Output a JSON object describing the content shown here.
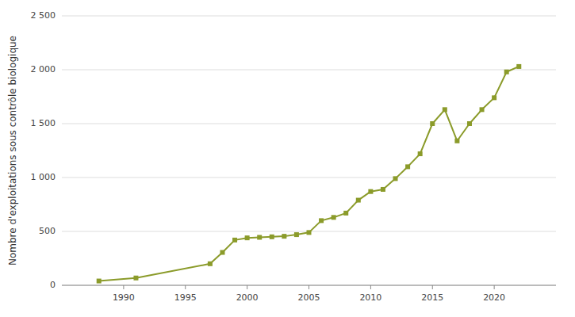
{
  "chart_data": {
    "type": "line",
    "y_label": "Nombre d'exploitations sous contrôle biologique",
    "x": [
      1988,
      1991,
      1997,
      1998,
      1999,
      2000,
      2001,
      2002,
      2003,
      2004,
      2005,
      2006,
      2007,
      2008,
      2009,
      2010,
      2011,
      2012,
      2013,
      2014,
      2015,
      2016,
      2017,
      2018,
      2019,
      2020,
      2021,
      2022
    ],
    "values": [
      40,
      68,
      200,
      305,
      420,
      440,
      445,
      450,
      455,
      470,
      490,
      600,
      630,
      670,
      790,
      870,
      890,
      990,
      1100,
      1220,
      1500,
      1630,
      1340,
      1500,
      1630,
      1740,
      1980,
      2030
    ],
    "color": "#8B9B2A",
    "marker": "square",
    "xlim": [
      1985,
      2025
    ],
    "xticks": [
      1990,
      1995,
      2000,
      2005,
      2010,
      2015,
      2020
    ],
    "ylim": [
      0,
      2500
    ],
    "yticks": [
      0,
      500,
      {
        "value": 1000,
        "label": "1 000"
      },
      {
        "value": 1500,
        "label": "1 500"
      },
      {
        "value": 2000,
        "label": "2 000"
      },
      {
        "value": 2500,
        "label": "2 500"
      }
    ],
    "grid": true
  }
}
